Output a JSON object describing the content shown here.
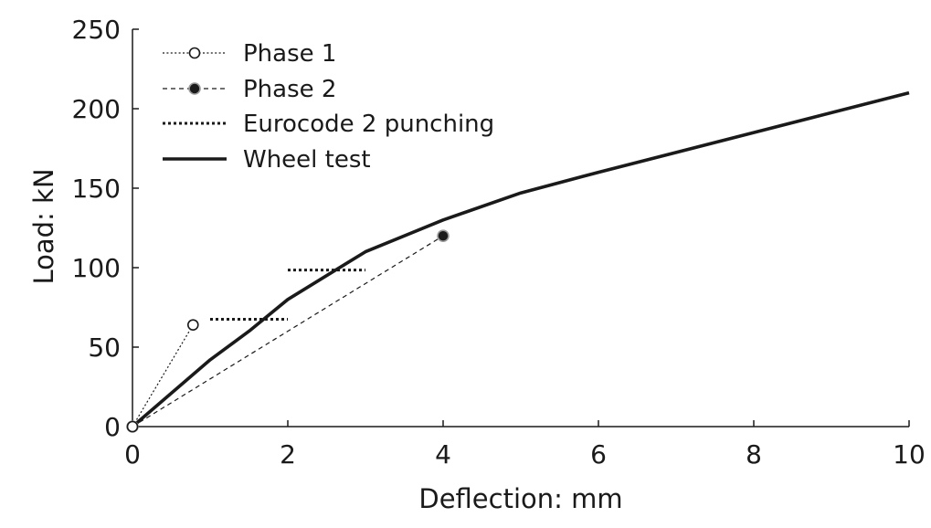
{
  "chart_data": {
    "type": "line",
    "title": "",
    "xlabel": "Deflection: mm",
    "ylabel": "Load: kN",
    "xlim": [
      0,
      10
    ],
    "ylim": [
      0,
      250
    ],
    "x_ticks": [
      0,
      2,
      4,
      6,
      8,
      10
    ],
    "y_ticks": [
      0,
      50,
      100,
      150,
      200,
      250
    ],
    "grid": false,
    "legend_position": "top-left",
    "series": [
      {
        "name": "Phase 1",
        "style": "dotted-thin",
        "marker": "open-circle",
        "color": "#1a1a1a",
        "points": [
          [
            0,
            0
          ],
          [
            0.78,
            64
          ]
        ],
        "marker_points": [
          [
            0,
            0
          ],
          [
            0.78,
            64
          ]
        ]
      },
      {
        "name": "Phase 2",
        "style": "dashed-thin",
        "marker": "filled-circle",
        "color": "#1a1a1a",
        "points": [
          [
            0,
            0
          ],
          [
            4,
            120
          ]
        ],
        "marker_points": [
          [
            0,
            0
          ],
          [
            4,
            120
          ]
        ]
      },
      {
        "name": "Eurocode 2 punching",
        "style": "dotted-thick",
        "marker": "none",
        "color": "#1a1a1a",
        "segments": [
          [
            [
              1,
              67.5
            ],
            [
              2,
              67.5
            ]
          ],
          [
            [
              2,
              98.5
            ],
            [
              3,
              98.5
            ]
          ]
        ]
      },
      {
        "name": "Wheel test",
        "style": "solid-thick",
        "marker": "none",
        "color": "#1a1a1a",
        "points": [
          [
            0,
            0
          ],
          [
            1,
            42
          ],
          [
            1.5,
            60
          ],
          [
            2,
            80
          ],
          [
            3,
            110
          ],
          [
            4,
            130
          ],
          [
            5,
            147
          ],
          [
            6,
            160
          ],
          [
            8,
            185
          ],
          [
            10,
            210
          ]
        ]
      }
    ]
  }
}
